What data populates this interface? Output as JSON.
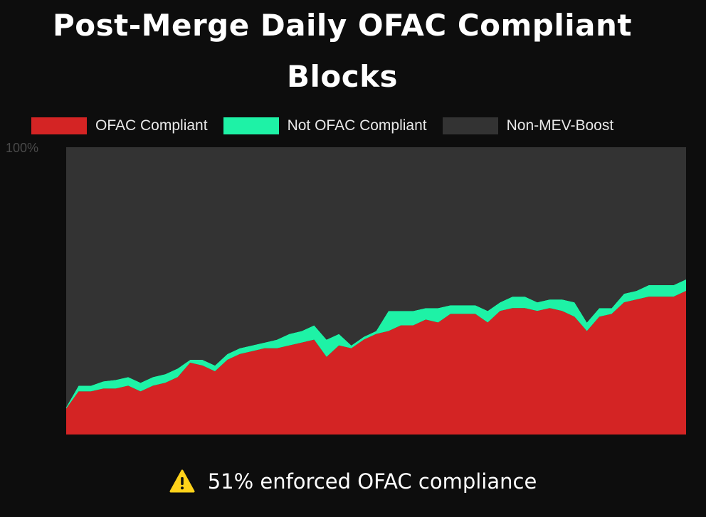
{
  "title_line1": "Post-Merge Daily OFAC Compliant",
  "title_line2": "Blocks",
  "footer_text": "51% enforced OFAC compliance",
  "footer_icon": "warning-icon",
  "colors": {
    "background": "#0d0d0d",
    "ofac_compliant": "#d42424",
    "not_ofac_compliant": "#1ef2a6",
    "non_mev_boost": "#333333",
    "warning": "#ffd21a"
  },
  "chart_data": {
    "type": "area",
    "stacked": true,
    "ylim": [
      0,
      100
    ],
    "y_tick_labels": [
      "100%"
    ],
    "legend_position": "top",
    "series": [
      {
        "name": "OFAC Compliant",
        "color": "#d42424",
        "values": [
          9,
          15,
          15,
          16,
          16,
          17,
          15,
          17,
          18,
          20,
          25,
          24,
          22,
          26,
          28,
          29,
          30,
          30,
          31,
          32,
          33,
          27,
          31,
          30,
          33,
          35,
          36,
          38,
          38,
          40,
          39,
          42,
          42,
          42,
          39,
          43,
          44,
          44,
          43,
          44,
          43,
          41,
          36,
          41,
          42,
          46,
          47,
          48,
          48,
          48,
          50
        ]
      },
      {
        "name": "Not OFAC Compliant",
        "color": "#1ef2a6",
        "values": [
          0.5,
          2,
          2,
          2.5,
          3,
          3,
          3,
          3,
          3,
          3,
          1,
          2,
          2,
          2,
          2,
          2,
          2,
          3,
          4,
          4,
          5,
          6,
          4,
          1,
          1,
          1,
          7,
          5,
          5,
          4,
          5,
          3,
          3,
          3,
          4,
          3,
          4,
          4,
          3,
          3,
          4,
          5,
          3,
          3,
          2,
          3,
          3,
          4,
          4,
          4,
          4
        ]
      },
      {
        "name": "Non-MEV-Boost",
        "color": "#333333",
        "values": [
          90.5,
          83,
          83,
          81.5,
          81,
          80,
          82,
          80,
          79,
          77,
          74,
          74,
          76,
          72,
          70,
          69,
          68,
          67,
          65,
          64,
          62,
          67,
          65,
          69,
          66,
          64,
          57,
          57,
          57,
          56,
          56,
          55,
          55,
          55,
          57,
          54,
          52,
          52,
          54,
          53,
          53,
          54,
          61,
          56,
          56,
          51,
          50,
          48,
          48,
          48,
          46
        ]
      }
    ]
  }
}
